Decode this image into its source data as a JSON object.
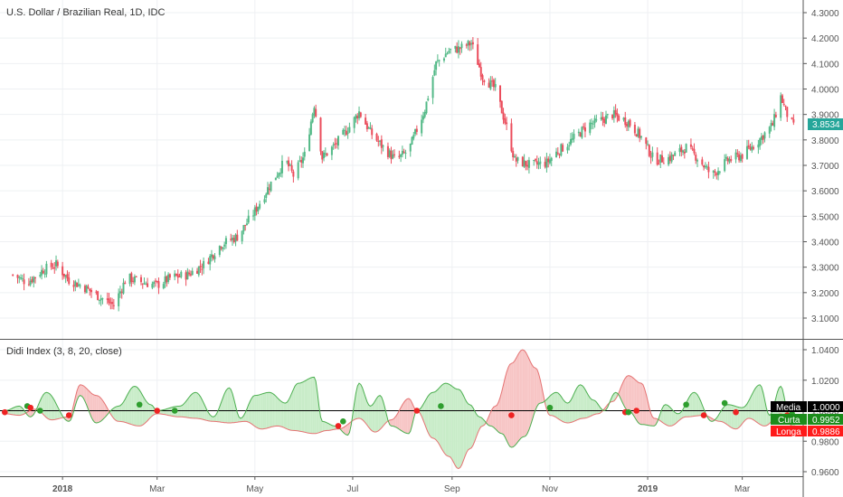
{
  "header": {
    "symbol_title": "U.S. Dollar / Brazilian Real, 1D, IDC"
  },
  "price_axis": {
    "ticks": [
      "4.3000",
      "4.2000",
      "4.1000",
      "4.0000",
      "3.9000",
      "3.8000",
      "3.7000",
      "3.6000",
      "3.5000",
      "3.4000",
      "3.3000",
      "3.2000",
      "3.1000"
    ],
    "last_price_label": "3.8534"
  },
  "indicator": {
    "title": "Didi Index (3, 8, 20, close)",
    "ticks": [
      "1.0400",
      "1.0200",
      "1.0000",
      "0.9800",
      "0.9600"
    ],
    "media_label": "Media",
    "media_value": "1.0000",
    "curta_label": "Curta",
    "curta_value": "0.9952",
    "longa_label": "Longa",
    "longa_value": "0.9886"
  },
  "time_axis": {
    "labels": [
      "2018",
      "Mar",
      "May",
      "Jul",
      "Sep",
      "Nov",
      "2019",
      "Mar"
    ]
  },
  "colors": {
    "up": "#53b987",
    "down": "#eb4d5c",
    "curta_line": "#4caf50",
    "longa_line": "#e57373",
    "fill_up": "#c8ecc8",
    "fill_down": "#f7c5c5",
    "price_tag": "#26a69a",
    "media_tag": "#000000",
    "curta_tag": "#1b8c1b",
    "longa_tag": "#ff1a1a"
  },
  "chart_data": [
    {
      "type": "candlestick",
      "title": "U.S. Dollar / Brazilian Real, 1D, IDC",
      "ylim": [
        3.05,
        4.33
      ],
      "x_labels": [
        "2018",
        "Mar",
        "May",
        "Jul",
        "Sep",
        "Nov",
        "2019",
        "Mar"
      ],
      "last_price": 3.8534,
      "close_path": [
        [
          "2017-12-01",
          3.27
        ],
        [
          "2017-12-10",
          3.24
        ],
        [
          "2017-12-20",
          3.29
        ],
        [
          "2017-12-28",
          3.31
        ],
        [
          "2018-01-05",
          3.25
        ],
        [
          "2018-01-15",
          3.22
        ],
        [
          "2018-01-25",
          3.18
        ],
        [
          "2018-02-02",
          3.15
        ],
        [
          "2018-02-10",
          3.26
        ],
        [
          "2018-02-20",
          3.24
        ],
        [
          "2018-03-01",
          3.23
        ],
        [
          "2018-03-10",
          3.26
        ],
        [
          "2018-03-20",
          3.27
        ],
        [
          "2018-03-30",
          3.31
        ],
        [
          "2018-04-10",
          3.39
        ],
        [
          "2018-04-20",
          3.42
        ],
        [
          "2018-05-01",
          3.52
        ],
        [
          "2018-05-10",
          3.62
        ],
        [
          "2018-05-20",
          3.72
        ],
        [
          "2018-05-25",
          3.66
        ],
        [
          "2018-06-01",
          3.74
        ],
        [
          "2018-06-07",
          3.94
        ],
        [
          "2018-06-12",
          3.73
        ],
        [
          "2018-06-20",
          3.78
        ],
        [
          "2018-06-30",
          3.86
        ],
        [
          "2018-07-05",
          3.91
        ],
        [
          "2018-07-12",
          3.83
        ],
        [
          "2018-07-20",
          3.77
        ],
        [
          "2018-07-28",
          3.72
        ],
        [
          "2018-08-05",
          3.76
        ],
        [
          "2018-08-15",
          3.92
        ],
        [
          "2018-08-22",
          4.1
        ],
        [
          "2018-08-30",
          4.15
        ],
        [
          "2018-09-06",
          4.16
        ],
        [
          "2018-09-13",
          4.18
        ],
        [
          "2018-09-20",
          4.05
        ],
        [
          "2018-09-28",
          4.0
        ],
        [
          "2018-10-05",
          3.85
        ],
        [
          "2018-10-10",
          3.72
        ],
        [
          "2018-10-20",
          3.7
        ],
        [
          "2018-10-30",
          3.71
        ],
        [
          "2018-11-05",
          3.75
        ],
        [
          "2018-11-15",
          3.8
        ],
        [
          "2018-11-25",
          3.86
        ],
        [
          "2018-12-01",
          3.87
        ],
        [
          "2018-12-10",
          3.9
        ],
        [
          "2018-12-20",
          3.87
        ],
        [
          "2018-12-28",
          3.81
        ],
        [
          "2019-01-05",
          3.72
        ],
        [
          "2019-01-15",
          3.73
        ],
        [
          "2019-01-25",
          3.77
        ],
        [
          "2019-02-01",
          3.73
        ],
        [
          "2019-02-10",
          3.66
        ],
        [
          "2019-02-20",
          3.72
        ],
        [
          "2019-03-01",
          3.74
        ],
        [
          "2019-03-10",
          3.79
        ],
        [
          "2019-03-20",
          3.86
        ],
        [
          "2019-03-25",
          3.97
        ],
        [
          "2019-03-29",
          3.9
        ],
        [
          "2019-04-02",
          3.85
        ]
      ]
    },
    {
      "type": "line",
      "title": "Didi Index (3, 8, 20, close)",
      "ylim": [
        0.955,
        1.046
      ],
      "series": [
        {
          "name": "Media",
          "constant": 1.0,
          "last": 1.0
        },
        {
          "name": "Curta",
          "last": 0.9952,
          "values": [
            [
              "2017-11-26",
              1.0
            ],
            [
              "2017-12-05",
              1.003
            ],
            [
              "2017-12-12",
              0.996
            ],
            [
              "2017-12-22",
              1.012
            ],
            [
              "2018-01-05",
              0.993
            ],
            [
              "2018-01-12",
              1.01
            ],
            [
              "2018-01-22",
              0.992
            ],
            [
              "2018-02-05",
              1.003
            ],
            [
              "2018-02-15",
              1.016
            ],
            [
              "2018-02-25",
              1.004
            ],
            [
              "2018-03-01",
              1.0
            ],
            [
              "2018-03-15",
              1.003
            ],
            [
              "2018-03-25",
              1.012
            ],
            [
              "2018-04-05",
              0.996
            ],
            [
              "2018-04-15",
              1.015
            ],
            [
              "2018-04-22",
              0.995
            ],
            [
              "2018-05-01",
              1.01
            ],
            [
              "2018-05-10",
              1.012
            ],
            [
              "2018-05-20",
              1.005
            ],
            [
              "2018-05-28",
              1.018
            ],
            [
              "2018-06-07",
              1.022
            ],
            [
              "2018-06-12",
              0.993
            ],
            [
              "2018-06-20",
              0.99
            ],
            [
              "2018-06-28",
              0.984
            ],
            [
              "2018-07-05",
              1.018
            ],
            [
              "2018-07-12",
              1.003
            ],
            [
              "2018-07-18",
              1.01
            ],
            [
              "2018-07-25",
              0.99
            ],
            [
              "2018-08-05",
              0.985
            ],
            [
              "2018-08-10",
              1.0
            ],
            [
              "2018-08-20",
              1.012
            ],
            [
              "2018-08-28",
              1.018
            ],
            [
              "2018-09-05",
              1.014
            ],
            [
              "2018-09-12",
              1.004
            ],
            [
              "2018-09-18",
              0.996
            ],
            [
              "2018-09-25",
              0.99
            ],
            [
              "2018-10-02",
              0.985
            ],
            [
              "2018-10-08",
              0.976
            ],
            [
              "2018-10-16",
              0.983
            ],
            [
              "2018-10-26",
              1.005
            ],
            [
              "2018-11-05",
              1.012
            ],
            [
              "2018-11-12",
              1.005
            ],
            [
              "2018-11-20",
              1.017
            ],
            [
              "2018-11-28",
              1.007
            ],
            [
              "2018-12-05",
              1.0
            ],
            [
              "2018-12-12",
              1.012
            ],
            [
              "2018-12-20",
              1.0
            ],
            [
              "2018-12-28",
              0.991
            ],
            [
              "2019-01-05",
              0.99
            ],
            [
              "2019-01-12",
              1.004
            ],
            [
              "2019-01-20",
              0.998
            ],
            [
              "2019-01-30",
              1.012
            ],
            [
              "2019-02-10",
              0.993
            ],
            [
              "2019-02-20",
              1.004
            ],
            [
              "2019-03-01",
              1.002
            ],
            [
              "2019-03-12",
              1.017
            ],
            [
              "2019-03-18",
              0.997
            ],
            [
              "2019-03-25",
              1.016
            ],
            [
              "2019-03-30",
              0.998
            ],
            [
              "2019-04-03",
              0.9952
            ]
          ]
        },
        {
          "name": "Longa",
          "last": 0.9886,
          "values": [
            [
              "2017-11-26",
              0.998
            ],
            [
              "2017-12-05",
              0.997
            ],
            [
              "2017-12-15",
              1.001
            ],
            [
              "2017-12-25",
              0.994
            ],
            [
              "2018-01-05",
              0.996
            ],
            [
              "2018-01-12",
              1.017
            ],
            [
              "2018-01-22",
              1.01
            ],
            [
              "2018-02-05",
              0.993
            ],
            [
              "2018-02-18",
              0.99
            ],
            [
              "2018-03-01",
              0.998
            ],
            [
              "2018-03-15",
              0.996
            ],
            [
              "2018-03-25",
              0.995
            ],
            [
              "2018-04-05",
              0.993
            ],
            [
              "2018-04-15",
              0.992
            ],
            [
              "2018-04-25",
              0.993
            ],
            [
              "2018-05-05",
              0.988
            ],
            [
              "2018-05-15",
              0.99
            ],
            [
              "2018-05-25",
              0.987
            ],
            [
              "2018-06-07",
              0.985
            ],
            [
              "2018-06-15",
              0.987
            ],
            [
              "2018-06-22",
              0.988
            ],
            [
              "2018-07-05",
              0.995
            ],
            [
              "2018-07-15",
              0.986
            ],
            [
              "2018-07-25",
              0.994
            ],
            [
              "2018-08-05",
              1.008
            ],
            [
              "2018-08-10",
              1.0
            ],
            [
              "2018-08-20",
              0.982
            ],
            [
              "2018-08-30",
              0.97
            ],
            [
              "2018-09-05",
              0.962
            ],
            [
              "2018-09-12",
              0.975
            ],
            [
              "2018-09-20",
              0.99
            ],
            [
              "2018-09-28",
              1.003
            ],
            [
              "2018-10-08",
              1.031
            ],
            [
              "2018-10-15",
              1.04
            ],
            [
              "2018-10-23",
              1.028
            ],
            [
              "2018-11-01",
              0.997
            ],
            [
              "2018-11-12",
              0.992
            ],
            [
              "2018-11-22",
              0.995
            ],
            [
              "2018-12-01",
              0.998
            ],
            [
              "2018-12-10",
              1.006
            ],
            [
              "2018-12-20",
              1.023
            ],
            [
              "2018-12-28",
              1.018
            ],
            [
              "2019-01-05",
              0.995
            ],
            [
              "2019-01-15",
              0.99
            ],
            [
              "2019-01-25",
              0.996
            ],
            [
              "2019-02-05",
              0.997
            ],
            [
              "2019-02-15",
              0.993
            ],
            [
              "2019-02-25",
              0.988
            ],
            [
              "2019-03-05",
              0.995
            ],
            [
              "2019-03-15",
              0.99
            ],
            [
              "2019-03-25",
              0.998
            ],
            [
              "2019-04-03",
              0.9886
            ]
          ]
        }
      ],
      "crossovers": [
        {
          "date": "2017-11-26",
          "value": 0.999,
          "signal": "down"
        },
        {
          "date": "2017-12-10",
          "value": 1.003,
          "signal": "up"
        },
        {
          "date": "2017-12-12",
          "value": 1.002,
          "signal": "down"
        },
        {
          "date": "2017-12-18",
          "value": 1.0,
          "signal": "up"
        },
        {
          "date": "2018-01-05",
          "value": 0.997,
          "signal": "down"
        },
        {
          "date": "2018-02-18",
          "value": 1.004,
          "signal": "up"
        },
        {
          "date": "2018-03-01",
          "value": 1.0,
          "signal": "down"
        },
        {
          "date": "2018-03-12",
          "value": 1.0,
          "signal": "up"
        },
        {
          "date": "2018-06-22",
          "value": 0.99,
          "signal": "down"
        },
        {
          "date": "2018-06-25",
          "value": 0.993,
          "signal": "up"
        },
        {
          "date": "2018-08-10",
          "value": 1.0,
          "signal": "down"
        },
        {
          "date": "2018-08-25",
          "value": 1.003,
          "signal": "up"
        },
        {
          "date": "2018-10-08",
          "value": 0.997,
          "signal": "down"
        },
        {
          "date": "2018-11-01",
          "value": 1.002,
          "signal": "up"
        },
        {
          "date": "2018-12-18",
          "value": 0.999,
          "signal": "down"
        },
        {
          "date": "2018-12-20",
          "value": 0.999,
          "signal": "up"
        },
        {
          "date": "2018-12-25",
          "value": 1.0,
          "signal": "down"
        },
        {
          "date": "2019-01-25",
          "value": 1.004,
          "signal": "up"
        },
        {
          "date": "2019-02-05",
          "value": 0.997,
          "signal": "down"
        },
        {
          "date": "2019-02-18",
          "value": 1.005,
          "signal": "up"
        },
        {
          "date": "2019-02-25",
          "value": 0.999,
          "signal": "down"
        },
        {
          "date": "2019-03-29",
          "value": 0.997,
          "signal": "down"
        },
        {
          "date": "2019-04-01",
          "value": 0.998,
          "signal": "up"
        }
      ]
    }
  ]
}
